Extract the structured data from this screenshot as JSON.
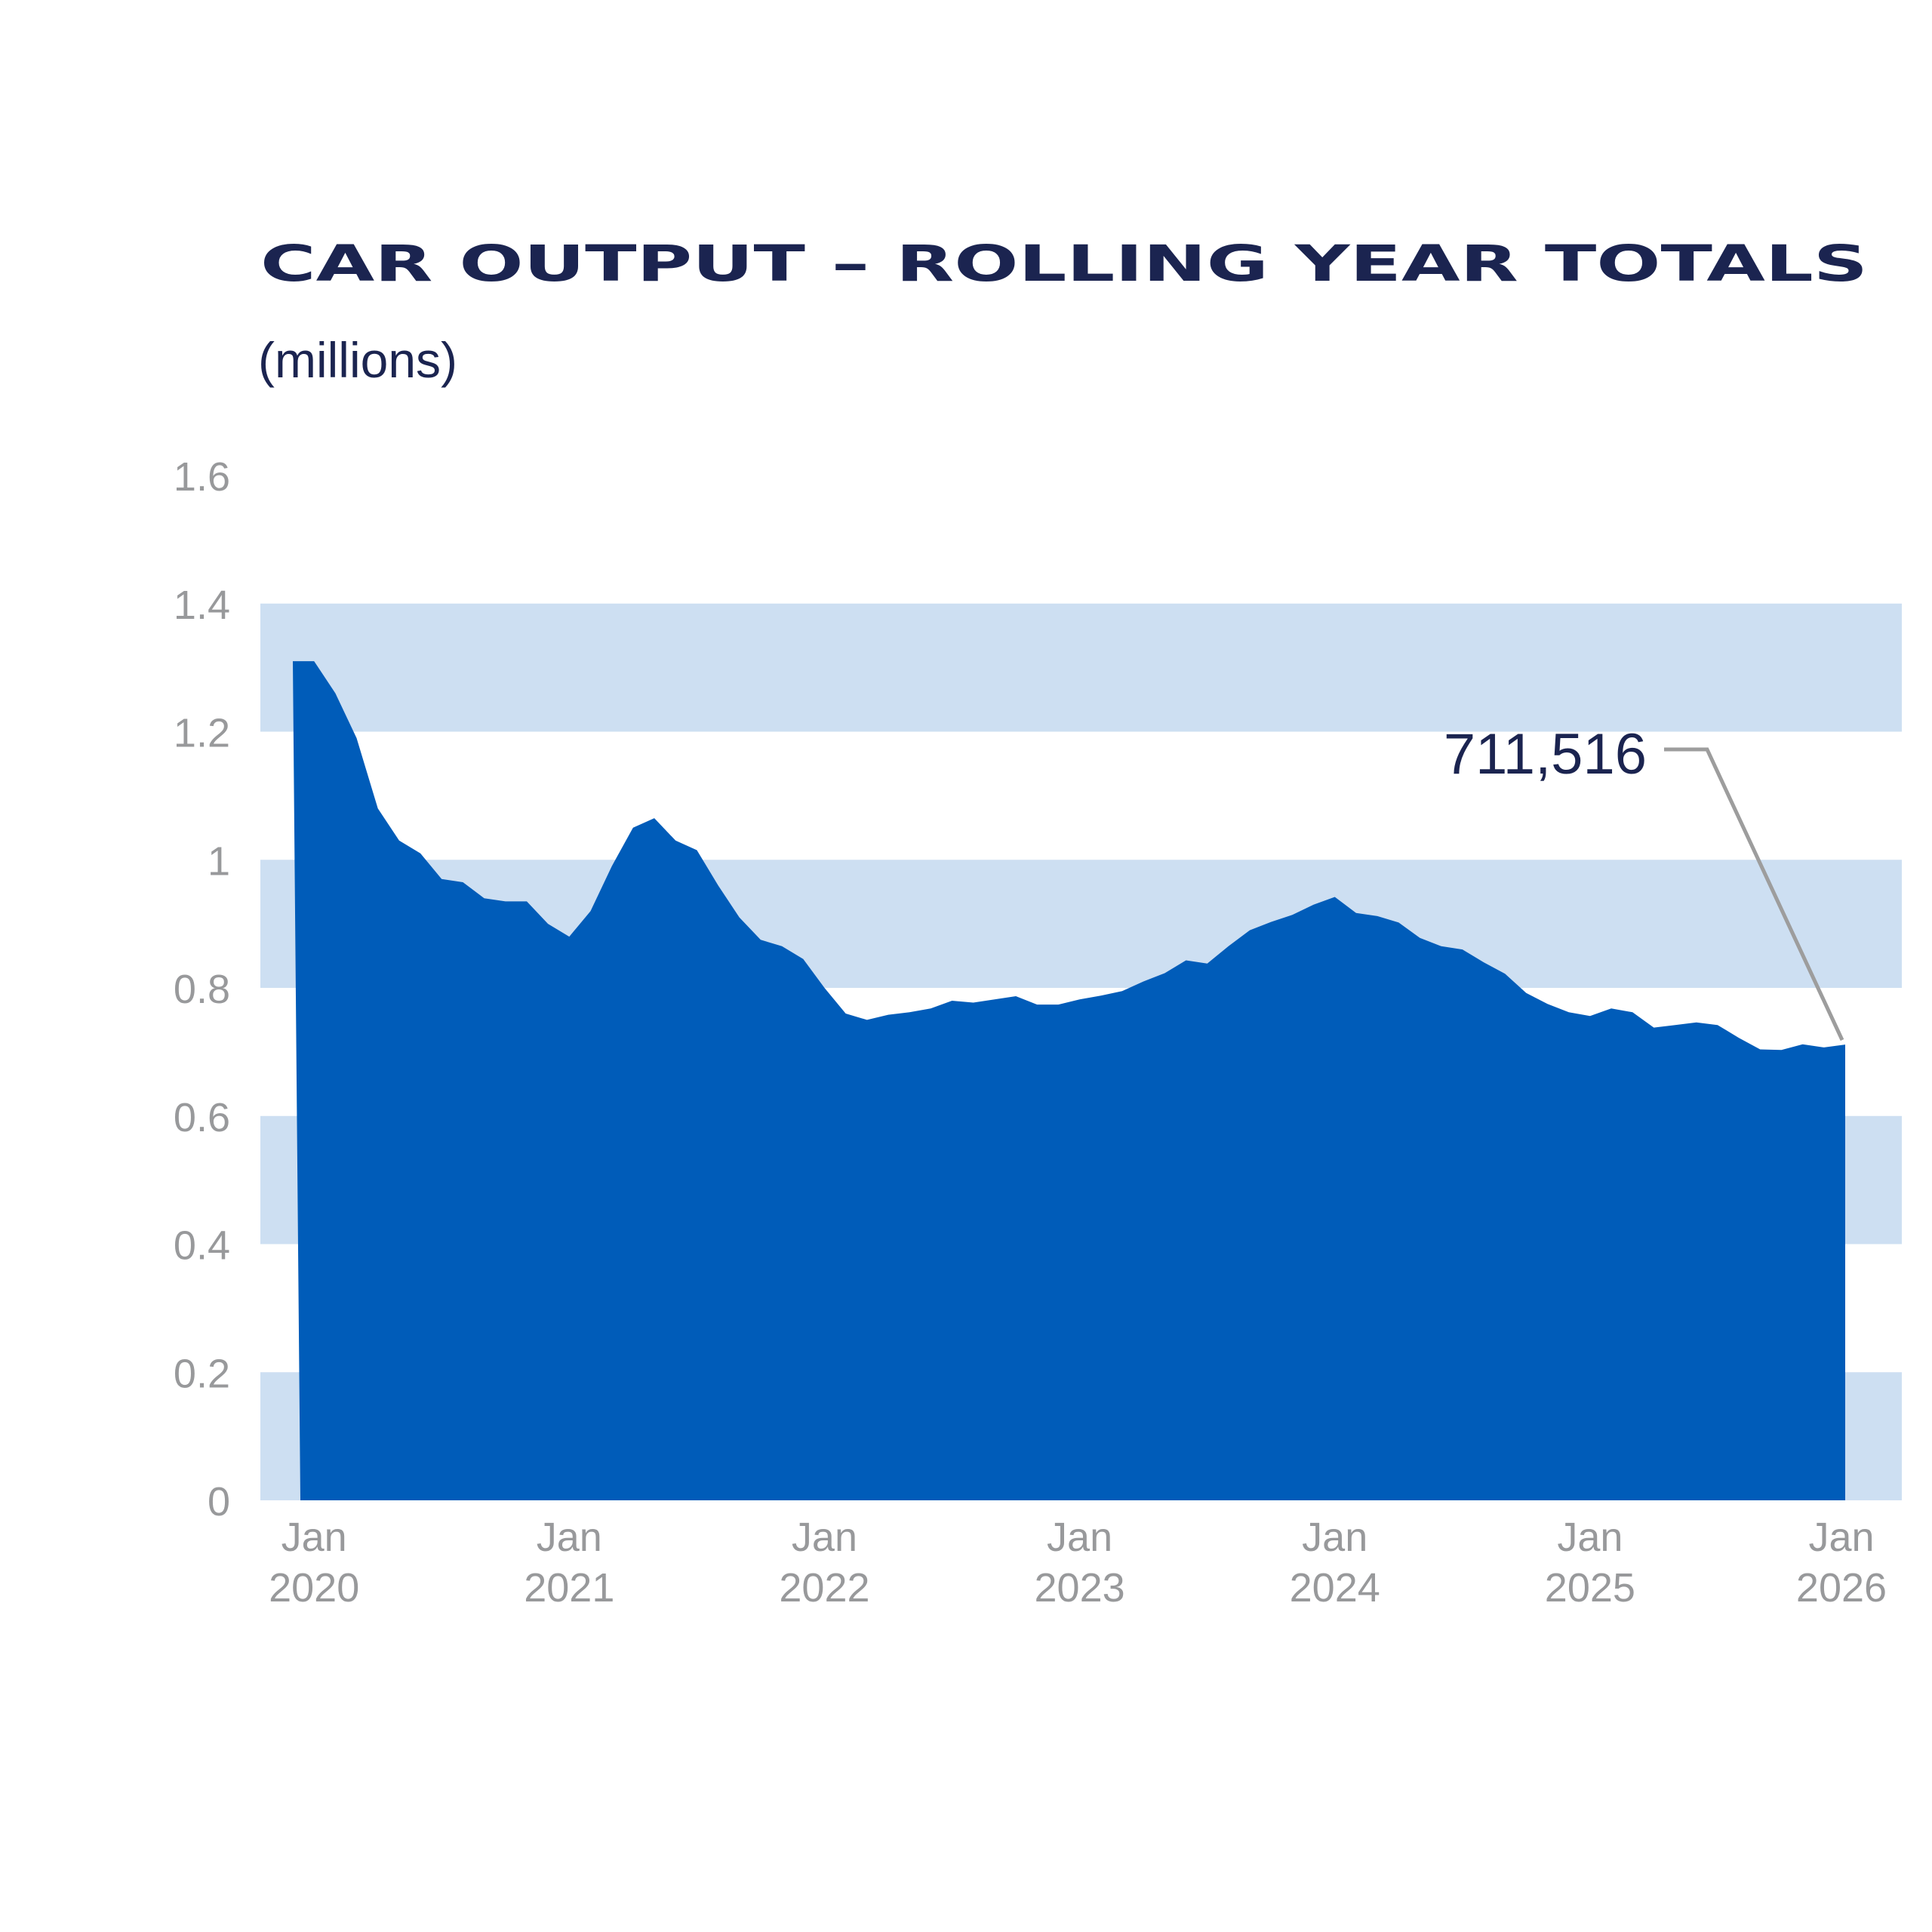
{
  "chart_data": {
    "type": "area",
    "title": "CAR OUTPUT – ROLLING YEAR TOTALS",
    "subtitle": "(millions)",
    "y_ticks": [
      "0",
      "0.2",
      "0.4",
      "0.6",
      "0.8",
      "1",
      "1.2",
      "1.4",
      "1.6"
    ],
    "ylim": [
      0,
      1.6
    ],
    "x_ticks": [
      {
        "line1": "Jan",
        "line2": "2020",
        "date": "2020-01"
      },
      {
        "line1": "Jan",
        "line2": "2021",
        "date": "2021-01"
      },
      {
        "line1": "Jan",
        "line2": "2022",
        "date": "2022-01"
      },
      {
        "line1": "Jan",
        "line2": "2023",
        "date": "2023-01"
      },
      {
        "line1": "Jan",
        "line2": "2024",
        "date": "2024-01"
      },
      {
        "line1": "Jan",
        "line2": "2025",
        "date": "2025-01"
      },
      {
        "line1": "Jan",
        "line2": "2026",
        "date": "2026-01"
      }
    ],
    "xlim": [
      "2019-12",
      "2026-01"
    ],
    "background_bands": "alternating light-blue bands between y gridlines",
    "series": [
      {
        "color": "#005cb9",
        "points": [
          [
            "2019-12",
            1.31
          ],
          [
            "2020-01",
            1.31
          ],
          [
            "2020-02",
            1.26
          ],
          [
            "2020-03",
            1.19
          ],
          [
            "2020-04",
            1.08
          ],
          [
            "2020-05",
            1.03
          ],
          [
            "2020-06",
            1.01
          ],
          [
            "2020-07",
            0.97
          ],
          [
            "2020-08",
            0.965
          ],
          [
            "2020-09",
            0.94
          ],
          [
            "2020-10",
            0.935
          ],
          [
            "2020-11",
            0.935
          ],
          [
            "2020-12",
            0.9
          ],
          [
            "2021-01",
            0.88
          ],
          [
            "2021-02",
            0.92
          ],
          [
            "2021-03",
            0.99
          ],
          [
            "2021-04",
            1.05
          ],
          [
            "2021-05",
            1.065
          ],
          [
            "2021-06",
            1.03
          ],
          [
            "2021-07",
            1.015
          ],
          [
            "2021-08",
            0.96
          ],
          [
            "2021-09",
            0.91
          ],
          [
            "2021-10",
            0.875
          ],
          [
            "2021-11",
            0.865
          ],
          [
            "2021-12",
            0.845
          ],
          [
            "2022-01",
            0.8
          ],
          [
            "2022-02",
            0.76
          ],
          [
            "2022-03",
            0.75
          ],
          [
            "2022-04",
            0.758
          ],
          [
            "2022-05",
            0.762
          ],
          [
            "2022-06",
            0.768
          ],
          [
            "2022-07",
            0.78
          ],
          [
            "2022-08",
            0.777
          ],
          [
            "2022-09",
            0.782
          ],
          [
            "2022-10",
            0.787
          ],
          [
            "2022-11",
            0.774
          ],
          [
            "2022-12",
            0.774
          ],
          [
            "2023-01",
            0.782
          ],
          [
            "2023-02",
            0.788
          ],
          [
            "2023-03",
            0.795
          ],
          [
            "2023-04",
            0.81
          ],
          [
            "2023-05",
            0.823
          ],
          [
            "2023-06",
            0.843
          ],
          [
            "2023-07",
            0.838
          ],
          [
            "2023-08",
            0.865
          ],
          [
            "2023-09",
            0.89
          ],
          [
            "2023-10",
            0.903
          ],
          [
            "2023-11",
            0.914
          ],
          [
            "2023-12",
            0.93
          ],
          [
            "2024-01",
            0.942
          ],
          [
            "2024-02",
            0.917
          ],
          [
            "2024-03",
            0.912
          ],
          [
            "2024-04",
            0.902
          ],
          [
            "2024-05",
            0.878
          ],
          [
            "2024-06",
            0.865
          ],
          [
            "2024-07",
            0.86
          ],
          [
            "2024-08",
            0.84
          ],
          [
            "2024-09",
            0.822
          ],
          [
            "2024-10",
            0.792
          ],
          [
            "2024-11",
            0.775
          ],
          [
            "2024-12",
            0.762
          ],
          [
            "2025-01",
            0.756
          ],
          [
            "2025-02",
            0.768
          ],
          [
            "2025-03",
            0.762
          ],
          [
            "2025-04",
            0.738
          ],
          [
            "2025-05",
            0.742
          ],
          [
            "2025-06",
            0.746
          ],
          [
            "2025-07",
            0.742
          ],
          [
            "2025-08",
            0.722
          ],
          [
            "2025-09",
            0.704
          ],
          [
            "2025-10",
            0.703
          ],
          [
            "2025-11",
            0.712
          ],
          [
            "2025-12",
            0.707
          ],
          [
            "2026-01",
            0.7115
          ]
        ]
      }
    ],
    "annotation": {
      "label": "711,516",
      "target": [
        "2026-01",
        0.7115
      ]
    }
  }
}
